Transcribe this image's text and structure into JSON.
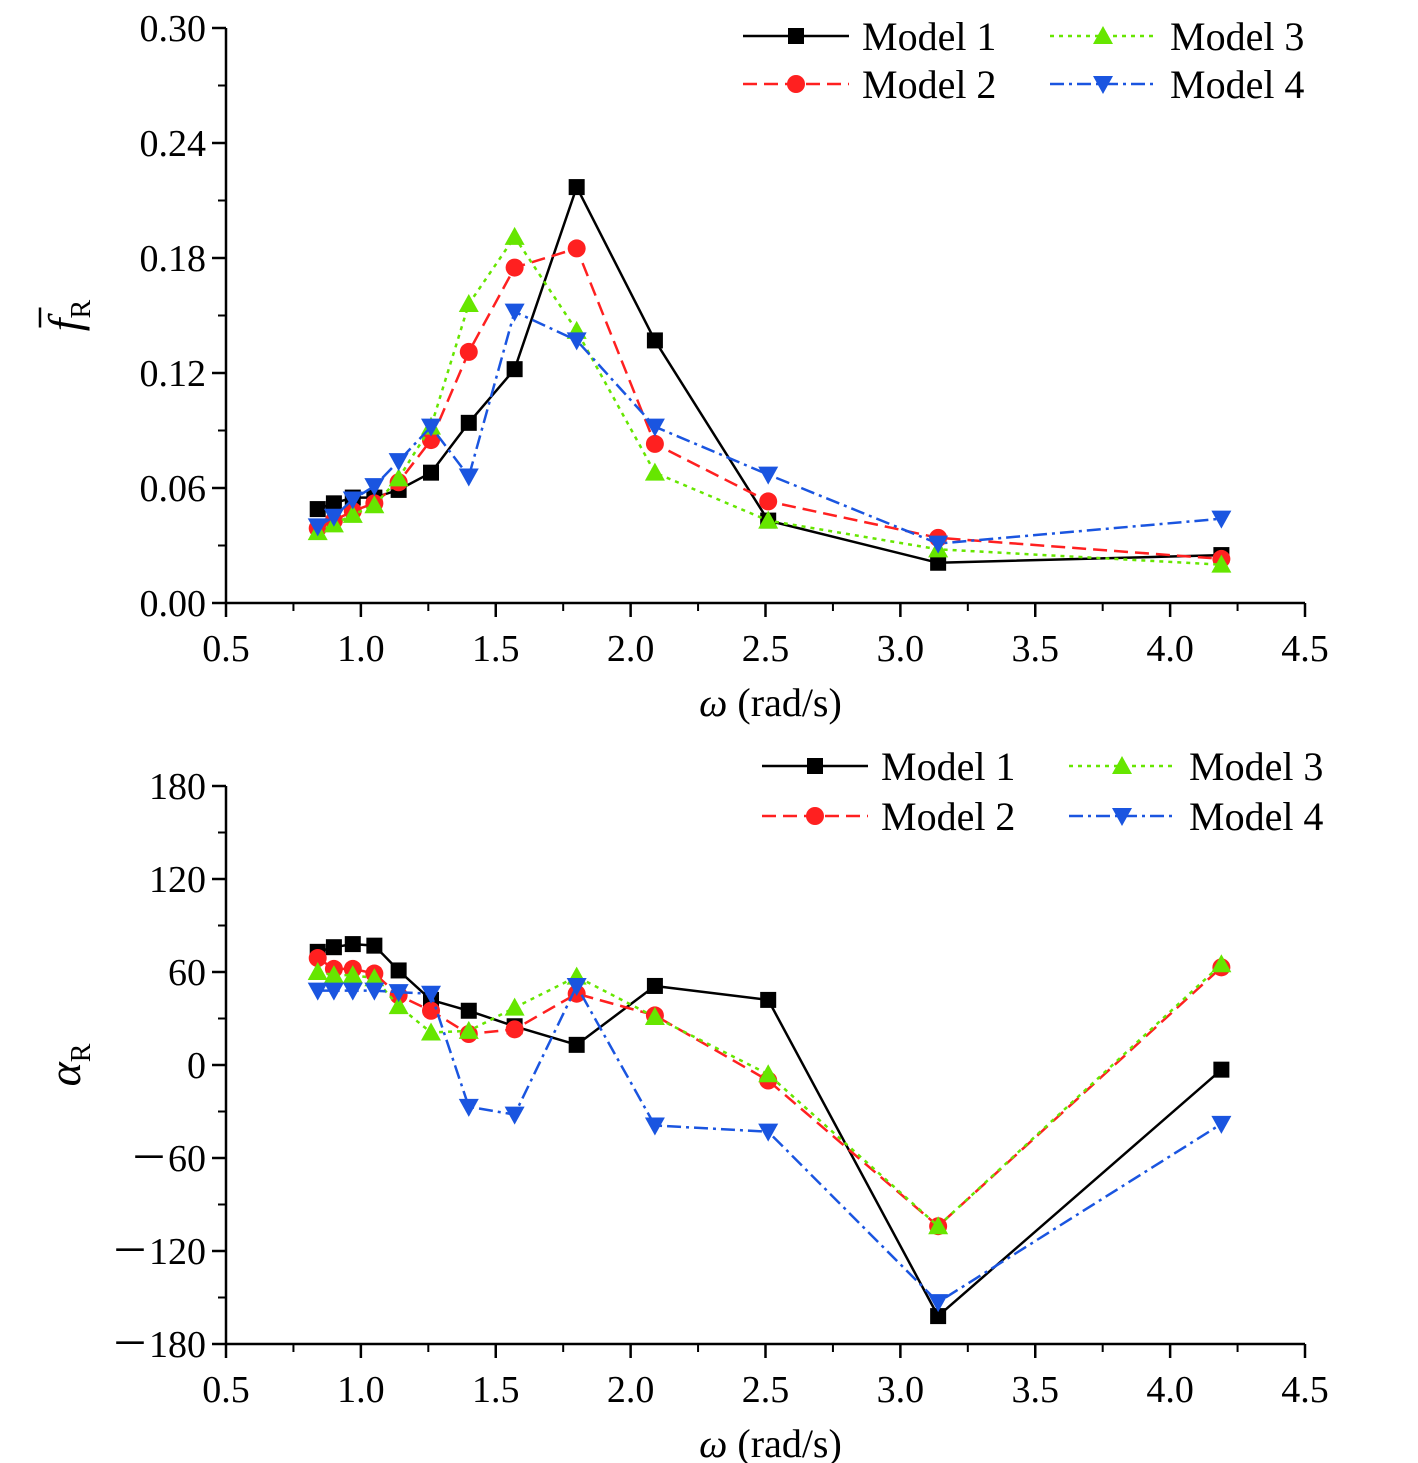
{
  "chart_data": [
    {
      "type": "line",
      "xlabel_symbol": "ω",
      "xlabel_unit": " (rad/s)",
      "ylabel_base": "f",
      "ylabel_sub": "R",
      "ylabel_overbar": true,
      "xlim": [
        0.5,
        4.5
      ],
      "ylim": [
        0.0,
        0.3
      ],
      "xticks": [
        0.5,
        1.0,
        1.5,
        2.0,
        2.5,
        3.0,
        3.5,
        4.0,
        4.5
      ],
      "xtick_labels": [
        "0.5",
        "1.0",
        "1.5",
        "2.0",
        "2.5",
        "3.0",
        "3.5",
        "4.0",
        "4.5"
      ],
      "yticks": [
        0.0,
        0.06,
        0.12,
        0.18,
        0.24,
        0.3
      ],
      "ytick_labels": [
        "0.00",
        "0.06",
        "0.12",
        "0.18",
        "0.24",
        "0.30"
      ],
      "grid": false,
      "legend": "top-right",
      "x": [
        0.84,
        0.9,
        0.97,
        1.05,
        1.14,
        1.26,
        1.4,
        1.57,
        1.8,
        2.09,
        2.51,
        3.14,
        4.19
      ],
      "series": [
        {
          "name": "Model 1",
          "color": "#000000",
          "dash": "",
          "marker": "square",
          "values": [
            0.049,
            0.052,
            0.055,
            0.055,
            0.059,
            0.068,
            0.094,
            0.122,
            0.217,
            0.137,
            0.043,
            0.021,
            0.025
          ]
        },
        {
          "name": "Model 2",
          "color": "#ff2020",
          "dash": "14,7",
          "marker": "circle",
          "values": [
            0.039,
            0.043,
            0.048,
            0.052,
            0.063,
            0.085,
            0.131,
            0.175,
            0.185,
            0.083,
            0.053,
            0.034,
            0.023
          ]
        },
        {
          "name": "Model 3",
          "color": "#66e600",
          "dash": "4,5",
          "marker": "triangle-up",
          "values": [
            0.037,
            0.041,
            0.046,
            0.051,
            0.065,
            0.092,
            0.156,
            0.191,
            0.142,
            0.068,
            0.043,
            0.028,
            0.02
          ]
        },
        {
          "name": "Model 4",
          "color": "#1a55e0",
          "dash": "14,5,3,5",
          "marker": "triangle-down",
          "values": [
            0.04,
            0.045,
            0.054,
            0.061,
            0.074,
            0.092,
            0.066,
            0.152,
            0.137,
            0.092,
            0.067,
            0.031,
            0.044
          ]
        }
      ]
    },
    {
      "type": "line",
      "xlabel_symbol": "ω",
      "xlabel_unit": " (rad/s)",
      "ylabel_base": "α",
      "ylabel_sub": "R",
      "ylabel_overbar": false,
      "xlim": [
        0.5,
        4.5
      ],
      "ylim": [
        -180,
        180
      ],
      "xticks": [
        0.5,
        1.0,
        1.5,
        2.0,
        2.5,
        3.0,
        3.5,
        4.0,
        4.5
      ],
      "xtick_labels": [
        "0.5",
        "1.0",
        "1.5",
        "2.0",
        "2.5",
        "3.0",
        "3.5",
        "4.0",
        "4.5"
      ],
      "yticks": [
        -180,
        -120,
        -60,
        0,
        60,
        120,
        180
      ],
      "ytick_labels": [
        "－180",
        "－120",
        "－60",
        "0",
        "60",
        "120",
        "180"
      ],
      "grid": false,
      "legend": "top-right",
      "x": [
        0.84,
        0.9,
        0.97,
        1.05,
        1.14,
        1.26,
        1.4,
        1.57,
        1.8,
        2.09,
        2.51,
        3.14,
        4.19
      ],
      "series": [
        {
          "name": "Model 1",
          "color": "#000000",
          "dash": "",
          "marker": "square",
          "values": [
            73,
            76,
            78,
            77,
            61,
            42,
            35,
            25,
            13,
            51,
            42,
            -162,
            -3
          ]
        },
        {
          "name": "Model 2",
          "color": "#ff2020",
          "dash": "14,7",
          "marker": "circle",
          "values": [
            69,
            62,
            62,
            59,
            45,
            35,
            20,
            23,
            46,
            32,
            -10,
            -104,
            63
          ]
        },
        {
          "name": "Model 3",
          "color": "#66e600",
          "dash": "4,5",
          "marker": "triangle-up",
          "values": [
            60,
            58,
            58,
            56,
            38,
            21,
            22,
            37,
            57,
            31,
            -6,
            -104,
            65
          ]
        },
        {
          "name": "Model 4",
          "color": "#1a55e0",
          "dash": "14,5,3,5",
          "marker": "triangle-down",
          "values": [
            48,
            48,
            48,
            48,
            47,
            46,
            -27,
            -32,
            51,
            -39,
            -43,
            -153,
            -38
          ]
        }
      ]
    }
  ]
}
